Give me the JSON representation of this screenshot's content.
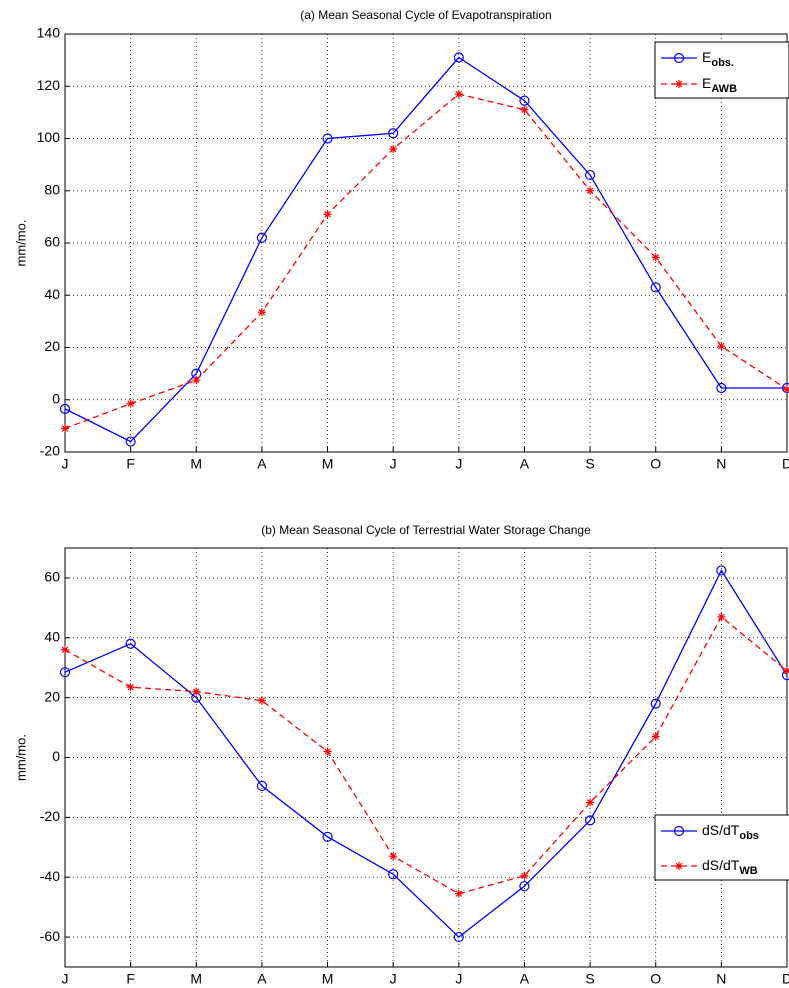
{
  "chart_data": [
    {
      "type": "line",
      "title": "(a) Mean Seasonal Cycle of Evapotranspiration",
      "y_label": "mm/mo.",
      "categories": [
        "J",
        "F",
        "M",
        "A",
        "M",
        "J",
        "J",
        "A",
        "S",
        "O",
        "N",
        "D"
      ],
      "series": [
        {
          "name": "E",
          "name_sub": "obs.",
          "color": "#0000ff",
          "marker": "o",
          "dashed": false,
          "values": [
            -3.5,
            -16,
            10,
            62,
            100,
            102,
            131,
            114.5,
            86,
            43,
            4.5,
            4.5
          ]
        },
        {
          "name": "E",
          "name_sub": "AWB",
          "color": "#ff0000",
          "marker": "*",
          "dashed": true,
          "values": [
            -11,
            -1.5,
            7.5,
            33.5,
            71,
            96,
            117,
            111,
            80,
            54.5,
            20.5,
            4
          ]
        }
      ],
      "ylim": [
        -20,
        140
      ],
      "yticks": [
        -20,
        0,
        20,
        40,
        60,
        80,
        100,
        120,
        140
      ],
      "grid": true,
      "legend": "top-right"
    },
    {
      "type": "line",
      "title": "(b) Mean Seasonal Cycle of Terrestrial Water Storage Change",
      "y_label": "mm/mo.",
      "categories": [
        "J",
        "F",
        "M",
        "A",
        "M",
        "J",
        "J",
        "A",
        "S",
        "O",
        "N",
        "D"
      ],
      "series": [
        {
          "name": "dS/dT",
          "name_sub": "obs",
          "color": "#0000ff",
          "marker": "o",
          "dashed": false,
          "values": [
            28.5,
            38,
            20,
            -9.5,
            -26.5,
            -39,
            -60,
            -43,
            -21,
            18,
            62.5,
            27.5
          ]
        },
        {
          "name": "dS/dT",
          "name_sub": "WB",
          "color": "#ff0000",
          "marker": "*",
          "dashed": true,
          "values": [
            36,
            23.5,
            22,
            19,
            2,
            -33,
            -45.5,
            -39.5,
            -15,
            7,
            47,
            29
          ]
        }
      ],
      "ylim": [
        -70,
        70
      ],
      "yticks": [
        -60,
        -40,
        -20,
        0,
        20,
        40,
        60
      ],
      "grid": true,
      "legend": "bottom-right"
    }
  ]
}
